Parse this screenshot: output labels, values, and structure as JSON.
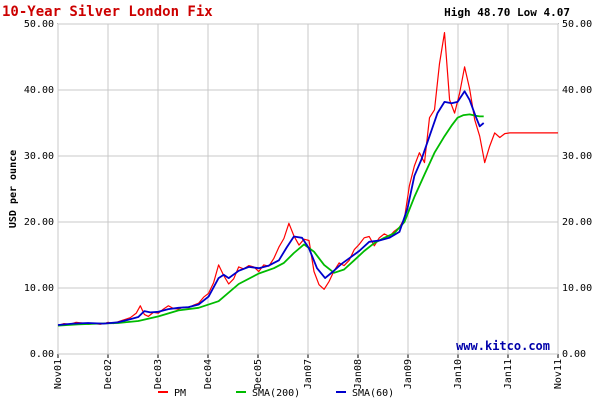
{
  "chart_data": {
    "type": "line",
    "title": "10-Year Silver London Fix",
    "high_low": "High 48.70 Low 4.07",
    "ylabel": "USD per ounce",
    "watermark": "www.kitco.com",
    "ylim": [
      0,
      50
    ],
    "yticks": [
      "0.00",
      "10.00",
      "20.00",
      "30.00",
      "40.00",
      "50.00"
    ],
    "x_tick_labels": [
      "Nov01",
      "Dec02",
      "Dec03",
      "Dec04",
      "Dec05",
      "Jan07",
      "Jan08",
      "Jan09",
      "Jan10",
      "Jan11",
      "Nov11"
    ],
    "grid": true,
    "legend_position": "bottom",
    "colors": {
      "title": "#cc0000",
      "pm": "#ff0000",
      "sma200": "#00bb00",
      "sma60": "#0000cc",
      "watermark": "#0000aa"
    },
    "series": [
      {
        "name": "PM",
        "x": [
          0,
          6,
          12,
          18,
          24,
          30,
          36,
          42,
          48,
          50,
          55,
          60,
          66,
          72,
          78,
          82,
          86,
          90,
          95,
          100,
          105,
          110,
          115,
          120,
          125,
          130,
          135,
          140,
          145,
          150,
          155,
          160,
          165,
          170,
          175,
          180,
          185,
          190,
          195,
          200,
          205,
          210,
          215,
          220,
          225,
          230,
          235,
          240,
          245,
          250,
          255,
          260,
          265,
          270,
          275,
          280,
          285,
          290,
          295,
          300,
          305,
          310,
          315,
          320,
          325,
          330,
          335,
          340,
          345,
          350,
          355,
          360,
          365,
          370,
          375,
          380,
          385,
          390,
          395,
          400,
          405,
          410,
          415,
          420,
          425,
          430,
          435,
          440,
          445,
          450,
          455,
          460,
          465,
          470,
          475,
          478,
          480,
          483,
          486,
          489,
          492,
          494,
          496,
          498
        ],
        "values": [
          4.3,
          4.6,
          4.5,
          4.8,
          4.7,
          4.5,
          4.6,
          4.5,
          4.7,
          4.8,
          4.6,
          4.9,
          5.2,
          5.5,
          6.2,
          7.3,
          6.0,
          5.7,
          6.3,
          6.2,
          6.8,
          7.3,
          6.9,
          6.8,
          7.1,
          7.0,
          7.4,
          7.7,
          8.6,
          9.2,
          10.8,
          13.5,
          11.9,
          10.6,
          11.4,
          13.2,
          12.9,
          13.4,
          13.2,
          12.5,
          13.5,
          13.3,
          14.5,
          16.2,
          17.5,
          19.8,
          17.9,
          16.5,
          17.4,
          17.2,
          12.5,
          10.5,
          9.8,
          11.0,
          12.6,
          13.8,
          13.4,
          14.2,
          15.8,
          16.6,
          17.6,
          17.8,
          16.4,
          17.6,
          18.2,
          17.8,
          18.6,
          19.2,
          20.5,
          25.5,
          28.5,
          30.5,
          29.0,
          35.8,
          37.0,
          44.0,
          48.7,
          38.5,
          36.5,
          39.5,
          43.5,
          40.2,
          35.5,
          33.0,
          29.0,
          31.5,
          33.5,
          32.8,
          33.4,
          33.5,
          33.5,
          33.5,
          33.5,
          33.5,
          33.5,
          33.5,
          33.5,
          33.5,
          33.5,
          33.5,
          33.5,
          33.5,
          33.5,
          33.5
        ]
      },
      {
        "name": "SMA(200)",
        "x": [
          0,
          20,
          40,
          60,
          80,
          100,
          120,
          140,
          160,
          180,
          200,
          215,
          225,
          235,
          245,
          255,
          265,
          275,
          285,
          295,
          305,
          315,
          325,
          335,
          345,
          355,
          365,
          375,
          385,
          392,
          398,
          404,
          410,
          416,
          420,
          424
        ],
        "values": [
          4.3,
          4.5,
          4.6,
          4.7,
          5.0,
          5.7,
          6.6,
          7.0,
          8.0,
          10.6,
          12.2,
          13.0,
          13.8,
          15.3,
          16.6,
          15.5,
          13.5,
          12.3,
          12.8,
          14.2,
          15.6,
          16.8,
          17.6,
          18.3,
          20.0,
          23.8,
          27.2,
          30.5,
          33.0,
          34.6,
          35.8,
          36.2,
          36.3,
          36.1,
          36.0,
          36.0
        ]
      },
      {
        "name": "SMA(60)",
        "x": [
          0,
          15,
          30,
          45,
          60,
          70,
          80,
          86,
          92,
          100,
          110,
          120,
          130,
          140,
          150,
          160,
          165,
          170,
          180,
          190,
          200,
          210,
          220,
          228,
          235,
          243,
          250,
          258,
          266,
          274,
          282,
          290,
          300,
          310,
          320,
          330,
          340,
          348,
          355,
          362,
          370,
          378,
          385,
          392,
          398,
          405,
          410,
          416,
          420,
          424
        ],
        "values": [
          4.4,
          4.6,
          4.7,
          4.6,
          4.8,
          5.2,
          5.6,
          6.5,
          6.3,
          6.4,
          6.8,
          7.0,
          7.1,
          7.5,
          8.7,
          11.5,
          12.0,
          11.5,
          12.6,
          13.2,
          13.0,
          13.4,
          14.2,
          16.2,
          17.8,
          17.6,
          16.0,
          13.0,
          11.5,
          12.5,
          13.6,
          14.5,
          15.6,
          17.0,
          17.2,
          17.6,
          18.5,
          22.0,
          27.0,
          29.5,
          33.0,
          36.5,
          38.2,
          38.0,
          38.2,
          39.8,
          38.5,
          36.0,
          34.5,
          35.0
        ]
      }
    ]
  }
}
